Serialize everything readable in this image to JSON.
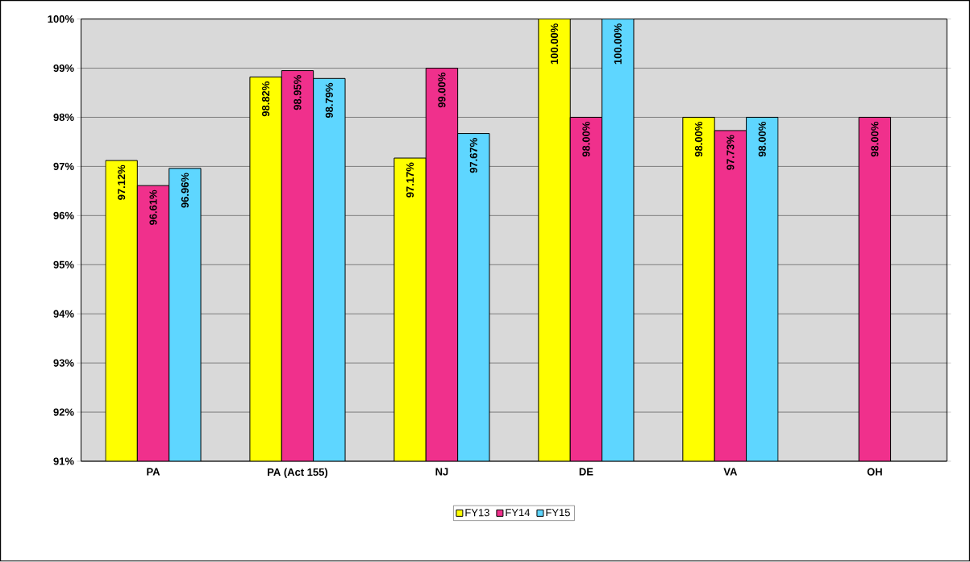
{
  "chart_data": {
    "type": "bar",
    "categories": [
      "PA",
      "PA (Act 155)",
      "NJ",
      "DE",
      "VA",
      "OH"
    ],
    "series": [
      {
        "name": "FY13",
        "color": "#ffff00",
        "values": [
          97.12,
          98.82,
          97.17,
          100.0,
          98.0,
          null
        ],
        "value_labels": [
          "97.12%",
          "98.82%",
          "97.17%",
          "100.00%",
          "98.00%",
          null
        ]
      },
      {
        "name": "FY14",
        "color": "#f0308c",
        "values": [
          96.61,
          98.95,
          99.0,
          98.0,
          97.73,
          98.0
        ],
        "value_labels": [
          "96.61%",
          "98.95%",
          "99.00%",
          "98.00%",
          "97.73%",
          "98.00%"
        ]
      },
      {
        "name": "FY15",
        "color": "#5ed6ff",
        "values": [
          96.96,
          98.79,
          97.67,
          100.0,
          98.0,
          null
        ],
        "value_labels": [
          "96.96%",
          "98.79%",
          "97.67%",
          "100.00%",
          "98.00%",
          null
        ]
      }
    ],
    "ylim": [
      91,
      100
    ],
    "yticks": [
      {
        "value": 91,
        "label": "91%"
      },
      {
        "value": 92,
        "label": "92%"
      },
      {
        "value": 93,
        "label": "93%"
      },
      {
        "value": 94,
        "label": "94%"
      },
      {
        "value": 95,
        "label": "95%"
      },
      {
        "value": 96,
        "label": "96%"
      },
      {
        "value": 97,
        "label": "97%"
      },
      {
        "value": 98,
        "label": "98%"
      },
      {
        "value": 99,
        "label": "99%"
      },
      {
        "value": 100,
        "label": "100%"
      }
    ],
    "grid": "y",
    "legend": "bottom"
  }
}
